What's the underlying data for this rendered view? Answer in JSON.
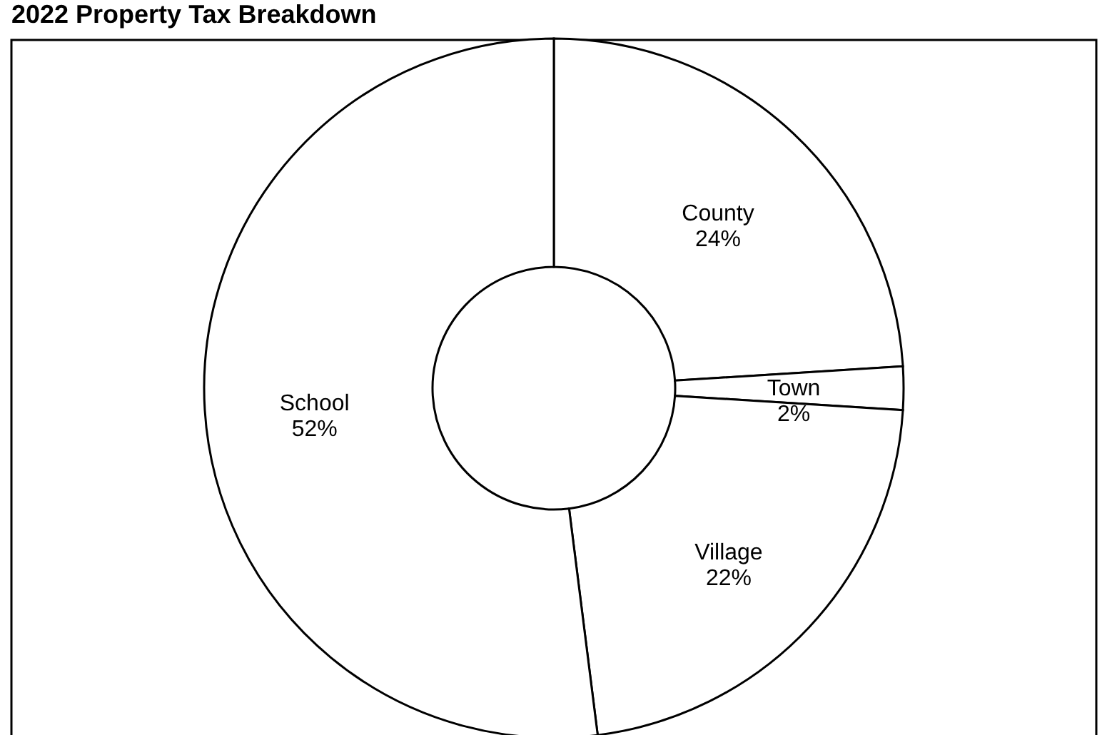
{
  "chart_data": {
    "type": "donut",
    "title": "2022 Property Tax Breakdown",
    "categories": [
      "County",
      "Town",
      "Village",
      "School"
    ],
    "values": [
      24,
      2,
      22,
      52
    ],
    "value_labels": [
      "24%",
      "2%",
      "22%",
      "52%"
    ],
    "colors": [
      "#ffffff",
      "#ffffff",
      "#ffffff",
      "#ffffff"
    ],
    "legend": false
  }
}
